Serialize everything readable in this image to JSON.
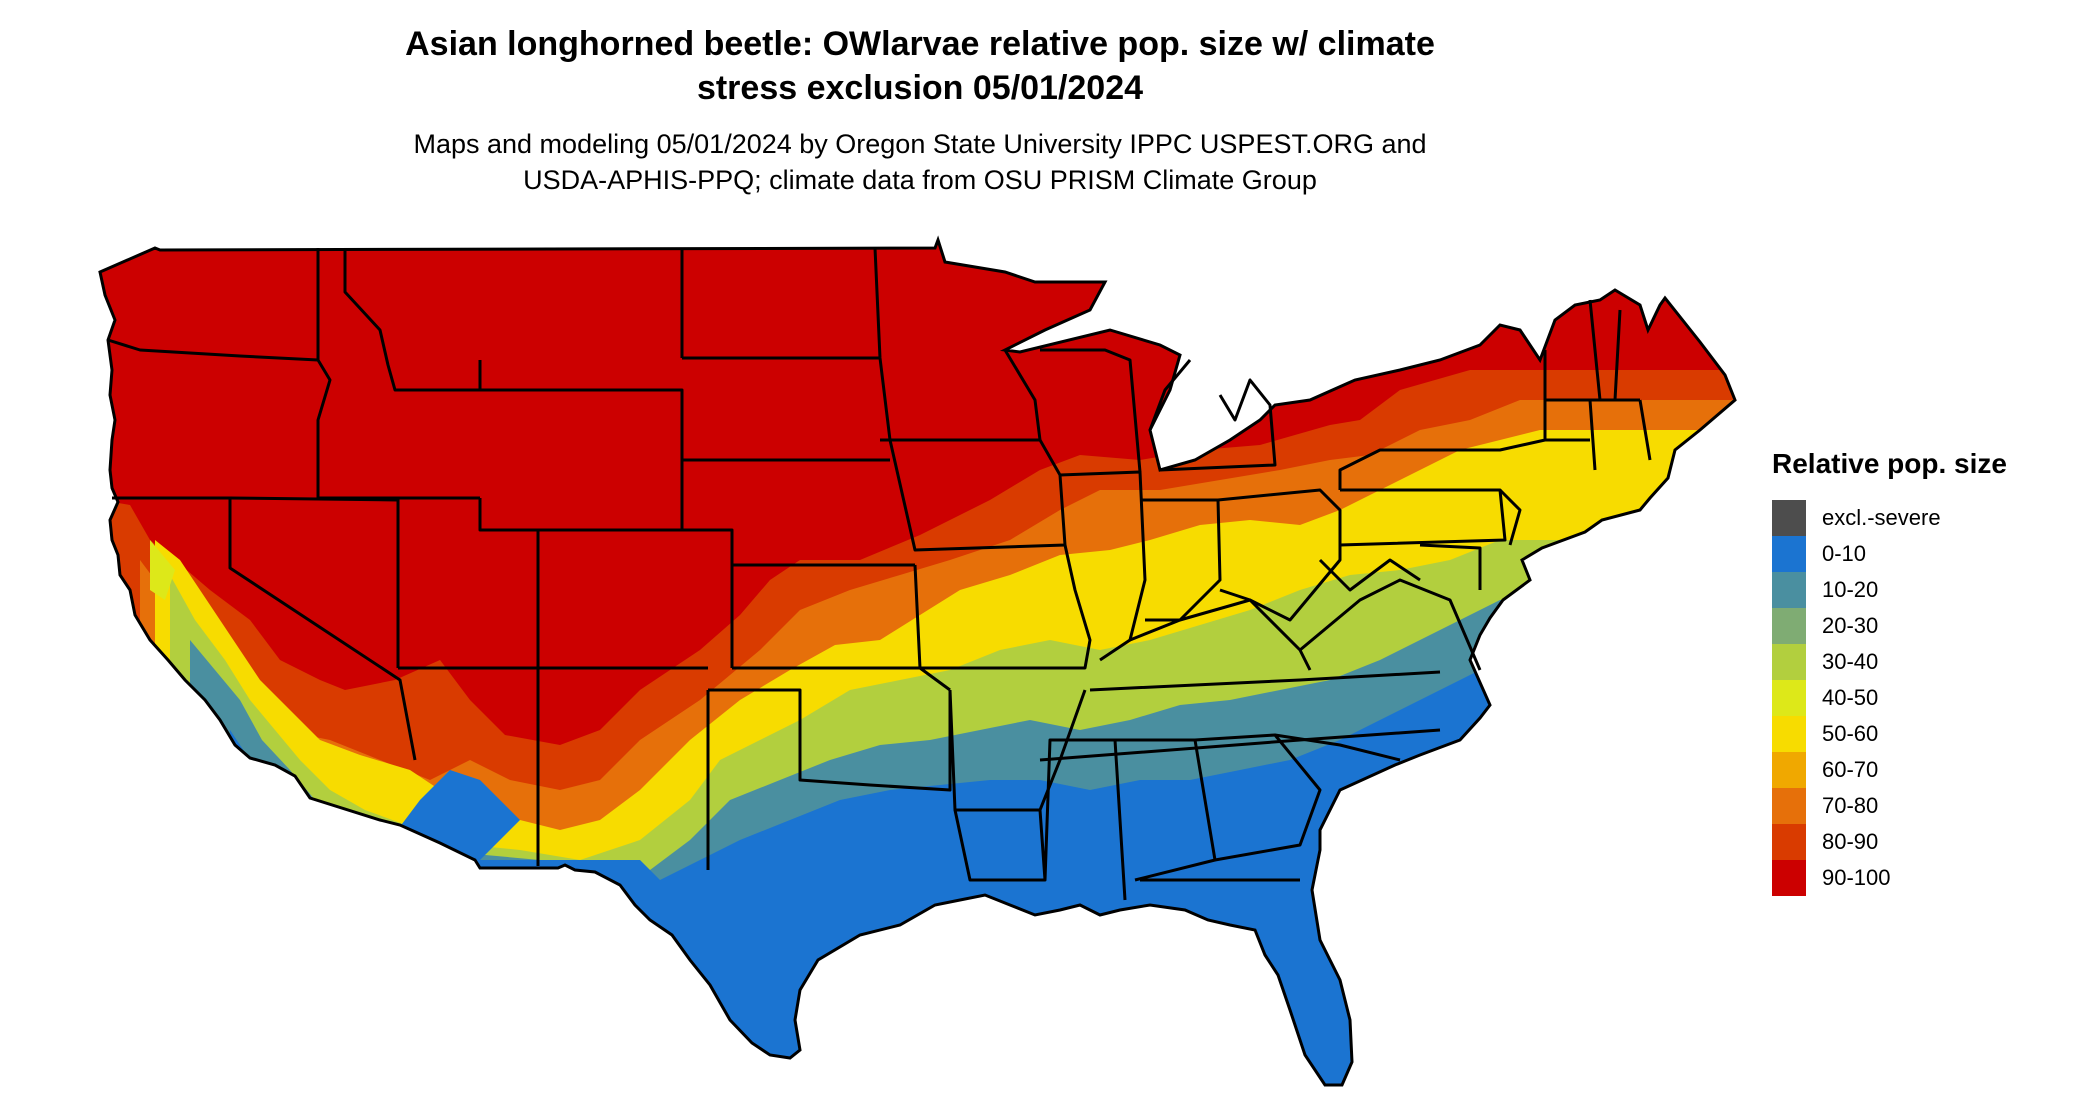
{
  "title_line1": "Asian longhorned beetle: OWlarvae relative pop. size w/ climate",
  "title_line2": "stress exclusion 05/01/2024",
  "subtitle_line1": "Maps and modeling 05/01/2024 by Oregon State University IPPC USPEST.ORG and",
  "subtitle_line2": "USDA-APHIS-PPQ; climate data from OSU PRISM Climate Group",
  "legend": {
    "title": "Relative pop. size",
    "items": [
      {
        "label": "excl.-severe",
        "color": "#4d4d4d"
      },
      {
        "label": "0-10",
        "color": "#1b74d1"
      },
      {
        "label": "10-20",
        "color": "#4a8fa0"
      },
      {
        "label": "20-30",
        "color": "#7fac73"
      },
      {
        "label": "30-40",
        "color": "#b2cf3e"
      },
      {
        "label": "40-50",
        "color": "#dde819"
      },
      {
        "label": "50-60",
        "color": "#f7dc00"
      },
      {
        "label": "60-70",
        "color": "#f0a800"
      },
      {
        "label": "70-80",
        "color": "#e6700a"
      },
      {
        "label": "80-90",
        "color": "#d93b00"
      },
      {
        "label": "90-100",
        "color": "#cc0000"
      }
    ]
  },
  "map": {
    "region": "conterminous United States",
    "borders_color": "#000000"
  }
}
